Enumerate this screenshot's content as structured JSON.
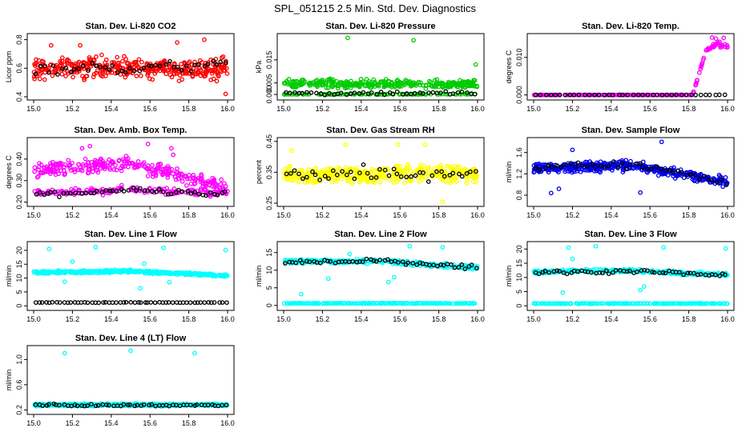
{
  "page_title": "SPL_051215  2.5 Min. Std. Dev. Diagnostics",
  "chart_data": [
    {
      "id": "co2",
      "type": "scatter",
      "title": "Stan. Dev. Li-820 CO2",
      "ylabel": "Licor ppm",
      "color": "#ff0000",
      "xlim": [
        15.0,
        16.0
      ],
      "ylim": [
        0.4,
        0.82
      ],
      "yticks": [
        "0.4",
        "0.6",
        "0.8"
      ],
      "xticks": [
        "15.0",
        "15.2",
        "15.4",
        "15.6",
        "15.8",
        "16.0"
      ],
      "colored": {
        "base": [
          0.6,
          0.6,
          0.6
        ],
        "noise": 0.07,
        "n": 380
      },
      "black": {
        "base": [
          0.6,
          0.6,
          0.62
        ],
        "noise": 0.04,
        "n": 45
      },
      "outliers": [
        [
          15.88,
          0.8
        ],
        [
          15.09,
          0.76
        ],
        [
          15.24,
          0.76
        ],
        [
          15.74,
          0.78
        ],
        [
          15.99,
          0.42
        ]
      ]
    },
    {
      "id": "pressure",
      "type": "scatter",
      "title": "Stan. Dev. Li-820 Pressure",
      "ylabel": "kPa",
      "color": "#00cc00",
      "xlim": [
        15.0,
        16.0
      ],
      "ylim": [
        -0.001,
        0.025
      ],
      "yticks": [
        "0.000",
        "0.005",
        "0.015"
      ],
      "xticks": [
        "15.0",
        "15.2",
        "15.4",
        "15.6",
        "15.8",
        "16.0"
      ],
      "colored": {
        "base": [
          0.0045,
          0.0045,
          0.0045
        ],
        "noise": 0.0017,
        "n": 340
      },
      "colored2": {
        "base": [
          0.0001,
          0.0001,
          0.0001
        ],
        "noise": 0.0001,
        "n": 100
      },
      "black": {
        "base": [
          0.0006,
          0.0006,
          0.0006
        ],
        "noise": 0.0008,
        "n": 45
      },
      "outliers": [
        [
          15.33,
          0.0245
        ],
        [
          15.67,
          0.0235
        ],
        [
          15.99,
          0.013
        ],
        [
          15.98,
          0.0062
        ],
        [
          15.24,
          0.0068
        ]
      ]
    },
    {
      "id": "licor_temp",
      "type": "scatter",
      "title": "Stan. Dev. Li-820 Temp.",
      "ylabel": "degrees C",
      "color": "#ff00ff",
      "xlim": [
        15.0,
        16.0
      ],
      "ylim": [
        -0.0005,
        0.0155
      ],
      "yticks": [
        "0.000",
        "0.010"
      ],
      "xticks": [
        "15.0",
        "15.2",
        "15.4",
        "15.6",
        "15.8",
        "16.0"
      ],
      "ramp": {
        "flat": 0.0,
        "start": 15.82,
        "mid": 15.89,
        "end": 15.96,
        "level": 0.012,
        "top": 0.014
      },
      "black": {
        "base": [
          0.0,
          0.0,
          0.0
        ],
        "noise": 3e-05,
        "n": 40
      },
      "outliers": [
        [
          15.92,
          0.0153
        ],
        [
          15.94,
          0.015
        ],
        [
          15.98,
          0.0152
        ]
      ]
    },
    {
      "id": "amb_temp",
      "type": "scatter",
      "title": "Stan. Dev. Amb. Box Temp.",
      "ylabel": "degrees C",
      "color": "#ff00ff",
      "xlim": [
        15.0,
        16.0
      ],
      "ylim": [
        0.195,
        0.485
      ],
      "yticks": [
        "0.20",
        "0.30",
        "0.40"
      ],
      "xticks": [
        "15.0",
        "15.2",
        "15.4",
        "15.6",
        "15.8",
        "16.0"
      ],
      "colored": {
        "base": [
          0.35,
          0.38,
          0.27
        ],
        "noise": 0.03,
        "n": 300
      },
      "colored2": {
        "base": [
          0.24,
          0.26,
          0.24
        ],
        "noise": 0.015,
        "n": 160
      },
      "black": {
        "base": [
          0.235,
          0.255,
          0.235
        ],
        "noise": 0.012,
        "n": 50
      },
      "outliers": [
        [
          15.25,
          0.45
        ],
        [
          15.29,
          0.46
        ],
        [
          15.59,
          0.47
        ],
        [
          15.71,
          0.45
        ],
        [
          15.72,
          0.42
        ]
      ]
    },
    {
      "id": "rh",
      "type": "scatter",
      "title": "Stan. Dev. Gas Stream RH",
      "ylabel": "percent",
      "color": "#ffff00",
      "xlim": [
        15.0,
        16.0
      ],
      "ylim": [
        0.25,
        0.452
      ],
      "yticks": [
        "0.25",
        "0.35",
        "0.45"
      ],
      "xticks": [
        "15.0",
        "15.2",
        "15.4",
        "15.6",
        "15.8",
        "16.0"
      ],
      "colored": {
        "base": [
          0.34,
          0.345,
          0.345
        ],
        "noise": 0.028,
        "n": 430
      },
      "black": {
        "base": [
          0.345,
          0.35,
          0.345
        ],
        "noise": 0.025,
        "n": 45
      },
      "outliers": [
        [
          15.32,
          0.44
        ],
        [
          15.59,
          0.44
        ],
        [
          15.73,
          0.44
        ],
        [
          15.82,
          0.255
        ],
        [
          15.04,
          0.42
        ]
      ]
    },
    {
      "id": "sample_flow",
      "type": "scatter",
      "title": "Stan. Dev. Sample Flow",
      "ylabel": "ml/min",
      "color": "#0000ee",
      "xlim": [
        15.0,
        16.0
      ],
      "ylim": [
        0.65,
        1.82
      ],
      "yticks": [
        "0.8",
        "1.2",
        "1.6"
      ],
      "xticks": [
        "15.0",
        "15.2",
        "15.4",
        "15.6",
        "15.8",
        "16.0"
      ],
      "colored": {
        "base": [
          1.3,
          1.36,
          1.05
        ],
        "noise": 0.09,
        "n": 420
      },
      "black": {
        "base": [
          1.32,
          1.38,
          1.05
        ],
        "noise": 0.06,
        "n": 45
      },
      "outliers": [
        [
          15.66,
          1.8
        ],
        [
          15.09,
          0.84
        ],
        [
          15.13,
          0.92
        ],
        [
          15.55,
          0.85
        ],
        [
          15.2,
          1.65
        ]
      ]
    },
    {
      "id": "line1",
      "type": "scatter",
      "title": "Stan. Dev. Line 1 Flow",
      "ylabel": "ml/min",
      "color": "#00ffff",
      "xlim": [
        15.0,
        16.0
      ],
      "ylim": [
        -0.5,
        22
      ],
      "yticks": [
        "0",
        "5",
        "10",
        "15",
        "20"
      ],
      "xticks": [
        "15.0",
        "15.2",
        "15.4",
        "15.6",
        "15.8",
        "16.0"
      ],
      "colored": {
        "base": [
          12.0,
          12.5,
          10.8
        ],
        "noise": 0.45,
        "n": 500
      },
      "black": {
        "base": [
          1.2,
          1.2,
          1.2
        ],
        "noise": 0.08,
        "n": 55
      },
      "outliers": [
        [
          15.08,
          20.5
        ],
        [
          15.32,
          21.2
        ],
        [
          15.67,
          20.9
        ],
        [
          15.99,
          20.1
        ],
        [
          15.16,
          8.7
        ],
        [
          15.55,
          6.3
        ],
        [
          15.7,
          8.5
        ],
        [
          15.2,
          16.0
        ],
        [
          15.57,
          15.2
        ]
      ]
    },
    {
      "id": "line2",
      "type": "scatter",
      "title": "Stan. Dev. Line 2 Flow",
      "ylabel": "ml/min",
      "color": "#00ffff",
      "xlim": [
        15.0,
        16.0
      ],
      "ylim": [
        -0.5,
        17.2
      ],
      "yticks": [
        "0",
        "5",
        "10",
        "15"
      ],
      "xticks": [
        "15.0",
        "15.2",
        "15.4",
        "15.6",
        "15.8",
        "16.0"
      ],
      "colored": {
        "base": [
          12.5,
          12.5,
          10.7
        ],
        "noise": 0.6,
        "n": 300
      },
      "colored2": {
        "base": [
          0.6,
          0.6,
          0.6
        ],
        "noise": 0.08,
        "n": 220
      },
      "black": {
        "base": [
          12.2,
          12.6,
          10.7
        ],
        "noise": 0.7,
        "n": 55
      },
      "outliers": [
        [
          15.09,
          3.2
        ],
        [
          15.23,
          7.6
        ],
        [
          15.54,
          6.6
        ],
        [
          15.65,
          16.8
        ],
        [
          15.82,
          16.5
        ],
        [
          15.34,
          14.6
        ],
        [
          15.57,
          8.0
        ]
      ]
    },
    {
      "id": "line3",
      "type": "scatter",
      "title": "Stan. Dev. Line 3 Flow",
      "ylabel": "ml/min",
      "color": "#00ffff",
      "xlim": [
        15.0,
        16.0
      ],
      "ylim": [
        -0.5,
        21.5
      ],
      "yticks": [
        "0",
        "5",
        "10",
        "15",
        "20"
      ],
      "xticks": [
        "15.0",
        "15.2",
        "15.4",
        "15.6",
        "15.8",
        "16.0"
      ],
      "colored": {
        "base": [
          12.0,
          12.4,
          10.8
        ],
        "noise": 0.6,
        "n": 280
      },
      "colored2": {
        "base": [
          0.8,
          0.8,
          0.8
        ],
        "noise": 0.1,
        "n": 220
      },
      "black": {
        "base": [
          11.8,
          12.2,
          10.8
        ],
        "noise": 0.6,
        "n": 55
      },
      "outliers": [
        [
          15.18,
          20.5
        ],
        [
          15.32,
          21.0
        ],
        [
          15.67,
          20.6
        ],
        [
          15.99,
          20.2
        ],
        [
          15.15,
          4.6
        ],
        [
          15.55,
          5.5
        ],
        [
          15.57,
          6.8
        ],
        [
          15.2,
          16.5
        ]
      ]
    },
    {
      "id": "line4",
      "type": "scatter",
      "title": "Stan. Dev. Line 4 (LT) Flow",
      "ylabel": "ml/min",
      "color": "#00ffff",
      "xlim": [
        15.0,
        16.0
      ],
      "ylim": [
        0.18,
        1.17
      ],
      "yticks": [
        "0.2",
        "0.6",
        "1.0"
      ],
      "xticks": [
        "15.0",
        "15.2",
        "15.4",
        "15.6",
        "15.8",
        "16.0"
      ],
      "colored": {
        "base": [
          0.28,
          0.28,
          0.28
        ],
        "noise": 0.018,
        "n": 520
      },
      "black": {
        "base": [
          0.275,
          0.275,
          0.275
        ],
        "noise": 0.015,
        "n": 55
      },
      "outliers": [
        [
          15.16,
          1.1
        ],
        [
          15.5,
          1.14
        ],
        [
          15.83,
          1.1
        ]
      ]
    }
  ]
}
